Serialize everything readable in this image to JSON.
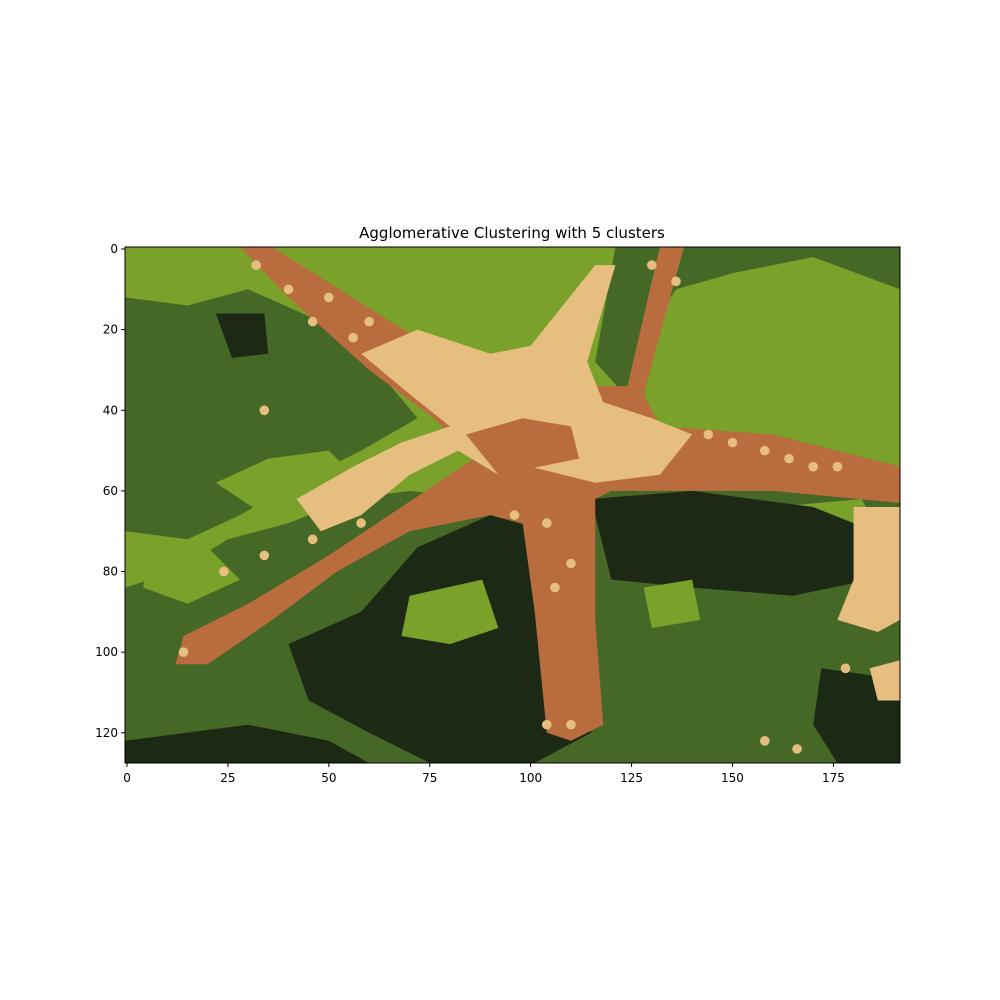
{
  "chart_data": {
    "type": "heatmap",
    "title": "Agglomerative Clustering with 5 clusters",
    "xlabel": "",
    "ylabel": "",
    "xlim": [
      -0.5,
      191.5
    ],
    "ylim": [
      127.5,
      -0.5
    ],
    "xticks": [
      0,
      25,
      50,
      75,
      100,
      125,
      150,
      175
    ],
    "yticks": [
      0,
      20,
      40,
      60,
      80,
      100,
      120
    ],
    "image_width": 192,
    "image_height": 128,
    "grid": false,
    "legend": "none",
    "palette": [
      "#1c2914",
      "#466826",
      "#7aa12a",
      "#b96c3e",
      "#e6be80"
    ],
    "segments": [
      {
        "cluster": 2,
        "kind": "poly",
        "points": [
          [
            -0.5,
            -0.5
          ],
          [
            191.5,
            -0.5
          ],
          [
            191.5,
            127.5
          ],
          [
            -0.5,
            127.5
          ]
        ]
      },
      {
        "cluster": 1,
        "kind": "poly",
        "points": [
          [
            -0.5,
            12
          ],
          [
            15,
            14
          ],
          [
            30,
            10
          ],
          [
            48,
            18
          ],
          [
            62,
            30
          ],
          [
            72,
            42
          ],
          [
            58,
            50
          ],
          [
            42,
            58
          ],
          [
            28,
            66
          ],
          [
            15,
            72
          ],
          [
            -0.5,
            70
          ]
        ]
      },
      {
        "cluster": 1,
        "kind": "poly",
        "points": [
          [
            116,
            28
          ],
          [
            121,
            -0.5
          ],
          [
            191.5,
            -0.5
          ],
          [
            191.5,
            10
          ],
          [
            170,
            2
          ],
          [
            150,
            6
          ],
          [
            136,
            10
          ],
          [
            128,
            22
          ],
          [
            125,
            38
          ]
        ]
      },
      {
        "cluster": 1,
        "kind": "poly",
        "points": [
          [
            -0.5,
            84
          ],
          [
            12,
            80
          ],
          [
            25,
            72
          ],
          [
            40,
            68
          ],
          [
            55,
            62
          ],
          [
            70,
            60
          ],
          [
            90,
            62
          ],
          [
            110,
            58
          ],
          [
            130,
            60
          ],
          [
            160,
            58
          ],
          [
            191.5,
            60
          ],
          [
            191.5,
            127.5
          ],
          [
            -0.5,
            127.5
          ]
        ]
      },
      {
        "cluster": 2,
        "kind": "poly",
        "points": [
          [
            22,
            58
          ],
          [
            35,
            52
          ],
          [
            50,
            50
          ],
          [
            58,
            58
          ],
          [
            48,
            64
          ],
          [
            34,
            66
          ]
        ]
      },
      {
        "cluster": 2,
        "kind": "poly",
        "points": [
          [
            5,
            76
          ],
          [
            20,
            74
          ],
          [
            28,
            82
          ],
          [
            15,
            88
          ],
          [
            4,
            84
          ]
        ]
      },
      {
        "cluster": 2,
        "kind": "poly",
        "points": [
          [
            160,
            64
          ],
          [
            182,
            62
          ],
          [
            186,
            70
          ],
          [
            170,
            72
          ]
        ]
      },
      {
        "cluster": 0,
        "kind": "poly",
        "points": [
          [
            90,
            66
          ],
          [
            104,
            70
          ],
          [
            114,
            92
          ],
          [
            115,
            120
          ],
          [
            100,
            128
          ],
          [
            75,
            127.5
          ],
          [
            60,
            120
          ],
          [
            45,
            112
          ],
          [
            40,
            98
          ],
          [
            58,
            90
          ],
          [
            72,
            74
          ]
        ]
      },
      {
        "cluster": 0,
        "kind": "poly",
        "points": [
          [
            115,
            62
          ],
          [
            140,
            60
          ],
          [
            170,
            64
          ],
          [
            185,
            70
          ],
          [
            184,
            82
          ],
          [
            165,
            86
          ],
          [
            140,
            84
          ],
          [
            120,
            82
          ]
        ]
      },
      {
        "cluster": 0,
        "kind": "poly",
        "points": [
          [
            -0.5,
            122
          ],
          [
            30,
            118
          ],
          [
            50,
            122
          ],
          [
            60,
            127.5
          ],
          [
            -0.5,
            127.5
          ]
        ]
      },
      {
        "cluster": 0,
        "kind": "poly",
        "points": [
          [
            172,
            104
          ],
          [
            186,
            106
          ],
          [
            191.5,
            112
          ],
          [
            191.5,
            127.5
          ],
          [
            176,
            127.5
          ],
          [
            170,
            118
          ]
        ]
      },
      {
        "cluster": 0,
        "kind": "poly",
        "points": [
          [
            22,
            16
          ],
          [
            34,
            16
          ],
          [
            35,
            26
          ],
          [
            26,
            27
          ]
        ]
      },
      {
        "cluster": 2,
        "kind": "poly",
        "points": [
          [
            70,
            86
          ],
          [
            88,
            82
          ],
          [
            92,
            94
          ],
          [
            80,
            98
          ],
          [
            68,
            96
          ]
        ]
      },
      {
        "cluster": 2,
        "kind": "poly",
        "points": [
          [
            128,
            84
          ],
          [
            140,
            82
          ],
          [
            142,
            92
          ],
          [
            130,
            94
          ]
        ]
      },
      {
        "cluster": 3,
        "kind": "poly",
        "points": [
          [
            28,
            -0.5
          ],
          [
            36,
            -0.5
          ],
          [
            78,
            26
          ],
          [
            100,
            34
          ],
          [
            124,
            34
          ],
          [
            132,
            -0.5
          ],
          [
            138,
            -0.5
          ],
          [
            128,
            36
          ],
          [
            132,
            44
          ],
          [
            160,
            46
          ],
          [
            191.5,
            54
          ],
          [
            191.5,
            63
          ],
          [
            160,
            60
          ],
          [
            120,
            60
          ],
          [
            116,
            62
          ],
          [
            116,
            92
          ],
          [
            118,
            118
          ],
          [
            110,
            122
          ],
          [
            104,
            120
          ],
          [
            101,
            90
          ],
          [
            98,
            68
          ],
          [
            90,
            66
          ],
          [
            70,
            70
          ],
          [
            52,
            80
          ],
          [
            36,
            92
          ],
          [
            20,
            103
          ],
          [
            12,
            103
          ],
          [
            14,
            96
          ],
          [
            30,
            88
          ],
          [
            50,
            76
          ],
          [
            68,
            64
          ],
          [
            86,
            52
          ],
          [
            76,
            42
          ],
          [
            60,
            30
          ],
          [
            40,
            12
          ]
        ]
      },
      {
        "cluster": 4,
        "kind": "poly",
        "points": [
          [
            58,
            26
          ],
          [
            72,
            20
          ],
          [
            90,
            26
          ],
          [
            100,
            24
          ],
          [
            116,
            4
          ],
          [
            121,
            4
          ],
          [
            114,
            28
          ],
          [
            118,
            38
          ],
          [
            130,
            42
          ],
          [
            140,
            46
          ],
          [
            132,
            56
          ],
          [
            116,
            58
          ],
          [
            100,
            54
          ],
          [
            92,
            56
          ],
          [
            82,
            50
          ],
          [
            70,
            56
          ],
          [
            58,
            66
          ],
          [
            48,
            70
          ],
          [
            42,
            62
          ],
          [
            56,
            54
          ],
          [
            68,
            48
          ],
          [
            80,
            44
          ],
          [
            70,
            36
          ]
        ]
      },
      {
        "cluster": 3,
        "kind": "poly",
        "points": [
          [
            84,
            46
          ],
          [
            98,
            42
          ],
          [
            110,
            44
          ],
          [
            112,
            52
          ],
          [
            102,
            54
          ],
          [
            92,
            56
          ]
        ]
      },
      {
        "cluster": 4,
        "kind": "poly",
        "points": [
          [
            180,
            64
          ],
          [
            191.5,
            64
          ],
          [
            191.5,
            92
          ],
          [
            186,
            95
          ],
          [
            176,
            92
          ],
          [
            180,
            82
          ]
        ]
      },
      {
        "cluster": 4,
        "kind": "poly",
        "points": [
          [
            184,
            104
          ],
          [
            191.5,
            102
          ],
          [
            191.5,
            112
          ],
          [
            186,
            112
          ]
        ]
      },
      {
        "cluster": 4,
        "kind": "dots",
        "radius": 1.2,
        "points": [
          [
            32,
            4
          ],
          [
            40,
            10
          ],
          [
            46,
            18
          ],
          [
            50,
            12
          ],
          [
            56,
            22
          ],
          [
            60,
            18
          ],
          [
            130,
            4
          ],
          [
            136,
            8
          ],
          [
            144,
            46
          ],
          [
            150,
            48
          ],
          [
            158,
            50
          ],
          [
            164,
            52
          ],
          [
            170,
            54
          ],
          [
            176,
            54
          ],
          [
            24,
            80
          ],
          [
            34,
            76
          ],
          [
            46,
            72
          ],
          [
            58,
            68
          ],
          [
            96,
            66
          ],
          [
            104,
            68
          ],
          [
            110,
            78
          ],
          [
            106,
            84
          ],
          [
            14,
            100
          ],
          [
            104,
            118
          ],
          [
            110,
            118
          ],
          [
            34,
            40
          ],
          [
            178,
            104
          ],
          [
            166,
            124
          ],
          [
            158,
            122
          ]
        ]
      }
    ]
  }
}
